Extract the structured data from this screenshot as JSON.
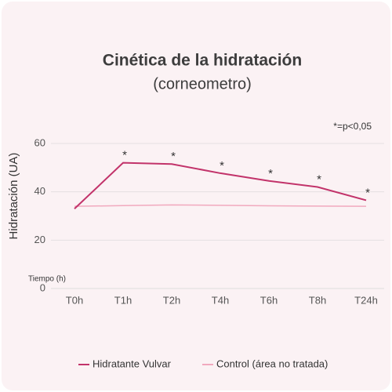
{
  "chart_data": {
    "type": "line",
    "title": "Cinética de la hidratación",
    "subtitle": "(corneometro)",
    "note": "*=p<0,05",
    "ylabel": "Hidratación (UA)",
    "xlabel": "Tiempo (h)",
    "categories": [
      "T0h",
      "T1h",
      "T2h",
      "T4h",
      "T6h",
      "T8h",
      "T24h"
    ],
    "series": [
      {
        "name": "Hidratante Vulvar",
        "color": "#c2336a",
        "values": [
          33,
          52,
          51.5,
          47.7,
          44.5,
          42,
          36.5
        ],
        "point_labels": [
          null,
          "*",
          "*",
          "*",
          "*",
          "*",
          "*"
        ]
      },
      {
        "name": "Control (área no tratada)",
        "color": "#f1a9be",
        "values": [
          34,
          34.3,
          34.6,
          34.4,
          34.2,
          34.1,
          34
        ]
      }
    ],
    "ylim": [
      0,
      60
    ],
    "yticks": [
      0,
      20,
      40,
      60
    ],
    "grid": true
  }
}
